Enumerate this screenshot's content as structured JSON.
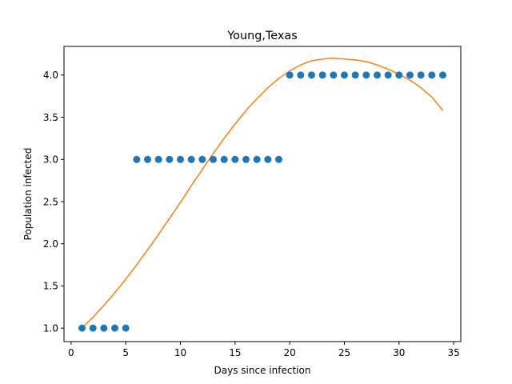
{
  "chart_data": {
    "type": "scatter",
    "title": "Young,Texas",
    "xlabel": "Days since infection",
    "ylabel": "Population infected",
    "xlim": [
      -0.65,
      35.65
    ],
    "ylim": [
      0.84,
      4.34
    ],
    "xticks": [
      0,
      5,
      10,
      15,
      20,
      25,
      30,
      35
    ],
    "xtick_labels": [
      "0",
      "5",
      "10",
      "15",
      "20",
      "25",
      "30",
      "35"
    ],
    "yticks": [
      1.0,
      1.5,
      2.0,
      2.5,
      3.0,
      3.5,
      4.0
    ],
    "ytick_labels": [
      "1.0",
      "1.5",
      "2.0",
      "2.5",
      "3.0",
      "3.5",
      "4.0"
    ],
    "grid": false,
    "series": [
      {
        "kind": "scatter",
        "color": "#1f77b4",
        "x": [
          1,
          2,
          3,
          4,
          5,
          6,
          7,
          8,
          9,
          10,
          11,
          12,
          13,
          14,
          15,
          16,
          17,
          18,
          19,
          20,
          21,
          22,
          23,
          24,
          25,
          26,
          27,
          28,
          29,
          30,
          31,
          32,
          33,
          34
        ],
        "y": [
          1,
          1,
          1,
          1,
          1,
          3,
          3,
          3,
          3,
          3,
          3,
          3,
          3,
          3,
          3,
          3,
          3,
          3,
          3,
          4,
          4,
          4,
          4,
          4,
          4,
          4,
          4,
          4,
          4,
          4,
          4,
          4,
          4,
          4
        ]
      },
      {
        "kind": "line",
        "color": "#ff7f0e",
        "x": [
          1,
          2,
          3,
          4,
          5,
          6,
          7,
          8,
          9,
          10,
          11,
          12,
          13,
          14,
          15,
          16,
          17,
          18,
          19,
          20,
          21,
          22,
          23,
          24,
          25,
          26,
          27,
          28,
          29,
          30,
          31,
          32,
          33,
          34
        ],
        "y": [
          1.0,
          1.13,
          1.27,
          1.42,
          1.58,
          1.75,
          1.93,
          2.11,
          2.3,
          2.49,
          2.69,
          2.88,
          3.07,
          3.25,
          3.42,
          3.58,
          3.72,
          3.85,
          3.96,
          4.05,
          4.12,
          4.17,
          4.19,
          4.2,
          4.19,
          4.18,
          4.16,
          4.12,
          4.07,
          4.01,
          3.94,
          3.85,
          3.74,
          3.58
        ]
      }
    ]
  }
}
